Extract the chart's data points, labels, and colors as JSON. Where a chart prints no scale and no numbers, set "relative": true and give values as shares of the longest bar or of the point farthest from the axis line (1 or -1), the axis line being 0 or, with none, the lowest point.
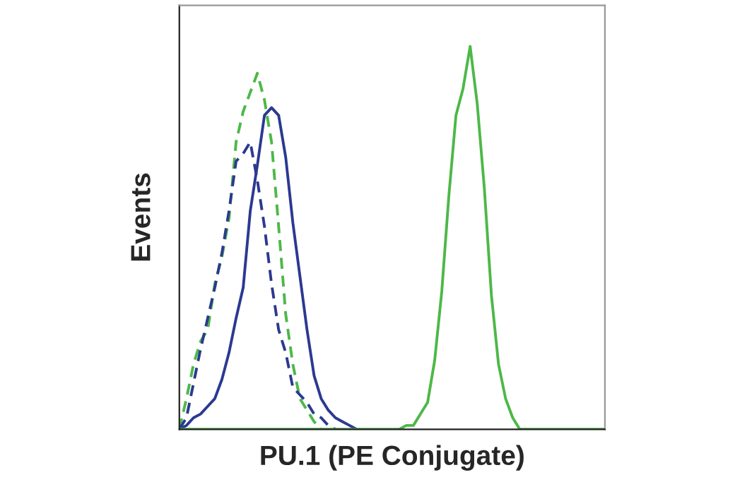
{
  "chart_data": {
    "type": "line",
    "relative": true,
    "xlabel": "PU.1 (PE Conjugate)",
    "ylabel": "Events",
    "categories": [
      null,
      null,
      null,
      null,
      null,
      null,
      null,
      null,
      null,
      null,
      null,
      null,
      null,
      null,
      null,
      null,
      null,
      null,
      null,
      null,
      null,
      null,
      null,
      null,
      null,
      null,
      null,
      null,
      null,
      null,
      null,
      null,
      null,
      null,
      null,
      null,
      null,
      null,
      null,
      null,
      null,
      null,
      null,
      null,
      null,
      null,
      null,
      null,
      null,
      null,
      null,
      null,
      null,
      null,
      null,
      null,
      null,
      null,
      null,
      null,
      null
    ],
    "series": [
      {
        "color": "#4db848",
        "line_style": "dashed",
        "values": [
          0,
          0.08,
          0.17,
          0.23,
          0.26,
          0.38,
          0.45,
          0.55,
          0.75,
          0.83,
          0.88,
          0.93,
          0.86,
          0.75,
          0.53,
          0.3,
          0.17,
          0.08,
          0.05,
          0.02,
          0,
          null,
          null,
          null,
          null,
          null,
          null,
          null,
          null,
          null,
          null,
          null,
          null,
          null,
          null,
          null,
          null,
          null,
          null,
          null,
          null,
          null,
          null,
          null,
          null,
          null,
          null,
          null,
          null,
          null,
          null,
          null,
          null,
          null,
          null,
          null,
          null,
          null,
          null,
          null,
          null
        ]
      },
      {
        "color": "#2b3990",
        "line_style": "dashed",
        "values": [
          0,
          0.03,
          0.12,
          0.21,
          0.29,
          0.37,
          0.46,
          0.57,
          0.7,
          0.72,
          0.75,
          0.65,
          0.53,
          0.38,
          0.26,
          0.2,
          0.11,
          0.09,
          0.07,
          0.04,
          0.03,
          0.01,
          0,
          null,
          null,
          null,
          null,
          null,
          null,
          null,
          null,
          null,
          null,
          null,
          null,
          null,
          null,
          null,
          null,
          null,
          null,
          null,
          null,
          null,
          null,
          null,
          null,
          null,
          null,
          null,
          null,
          null,
          null,
          null,
          null,
          null,
          null,
          null,
          null,
          null,
          null
        ]
      },
      {
        "color": "#2b3990",
        "line_style": "solid",
        "values": [
          0,
          0.01,
          0.03,
          0.04,
          0.06,
          0.08,
          0.13,
          0.2,
          0.29,
          0.37,
          0.57,
          0.69,
          0.82,
          0.84,
          0.82,
          0.71,
          0.54,
          0.4,
          0.26,
          0.14,
          0.08,
          0.05,
          0.03,
          0.02,
          0.01,
          0,
          null,
          null,
          null,
          null,
          null,
          null,
          null,
          null,
          null,
          null,
          null,
          null,
          null,
          null,
          null,
          null,
          null,
          null,
          null,
          null,
          null,
          null,
          null,
          null,
          null,
          null,
          null,
          null,
          null,
          null,
          null,
          null,
          null,
          null,
          null
        ]
      },
      {
        "color": "#4db848",
        "line_style": "solid",
        "values": [
          0,
          0,
          0,
          0,
          0,
          0,
          0,
          0,
          0,
          0,
          0,
          0,
          0,
          0,
          0,
          0,
          0,
          0,
          0,
          0,
          0,
          0,
          0,
          0,
          0,
          0,
          0,
          0,
          0,
          0,
          0,
          0,
          0.01,
          0.01,
          0.04,
          0.07,
          0.18,
          0.36,
          0.61,
          0.82,
          0.89,
          1,
          0.85,
          0.63,
          0.35,
          0.17,
          0.08,
          0.03,
          0,
          0,
          0,
          0,
          0,
          0,
          0,
          0,
          0,
          0,
          0,
          0,
          0
        ]
      }
    ]
  }
}
